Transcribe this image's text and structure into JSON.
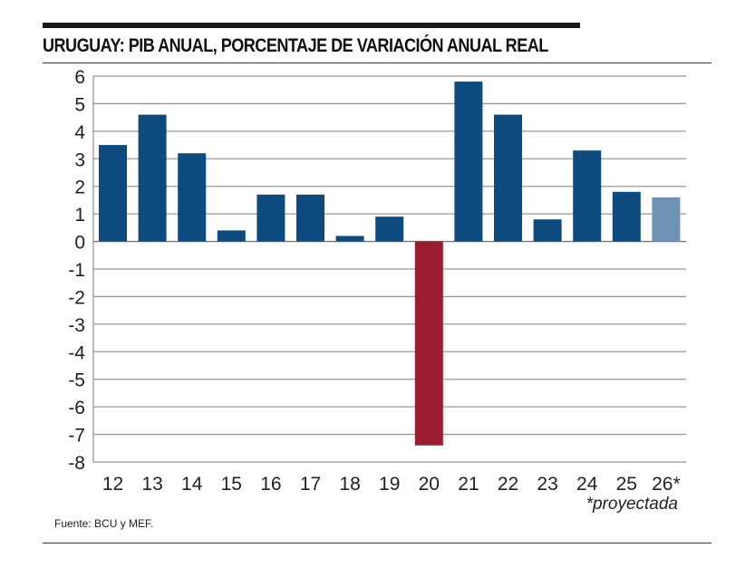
{
  "chart_data": {
    "type": "bar",
    "title": "URUGUAY: PIB ANUAL, PORCENTAJE DE VARIACIÓN ANUAL REAL",
    "categories": [
      "12",
      "13",
      "14",
      "15",
      "16",
      "17",
      "18",
      "19",
      "20",
      "21",
      "22",
      "23",
      "24",
      "25",
      "26*"
    ],
    "values": [
      3.5,
      4.6,
      3.2,
      0.4,
      1.7,
      1.7,
      0.2,
      0.9,
      -7.4,
      5.8,
      4.6,
      0.8,
      3.3,
      1.8,
      1.6
    ],
    "ylim": [
      -8,
      6
    ],
    "yticks": [
      6,
      5,
      4,
      3,
      2,
      1,
      0,
      -1,
      -2,
      -3,
      -4,
      -5,
      -6,
      -7,
      -8
    ],
    "grid": true,
    "colors": {
      "positive": "#0d4a7e",
      "negative": "#9b1b30",
      "projected": "#6e93b5"
    },
    "projected_index": 14,
    "annotation": "*proyectada",
    "source": "Fuente: BCU y MEF."
  }
}
